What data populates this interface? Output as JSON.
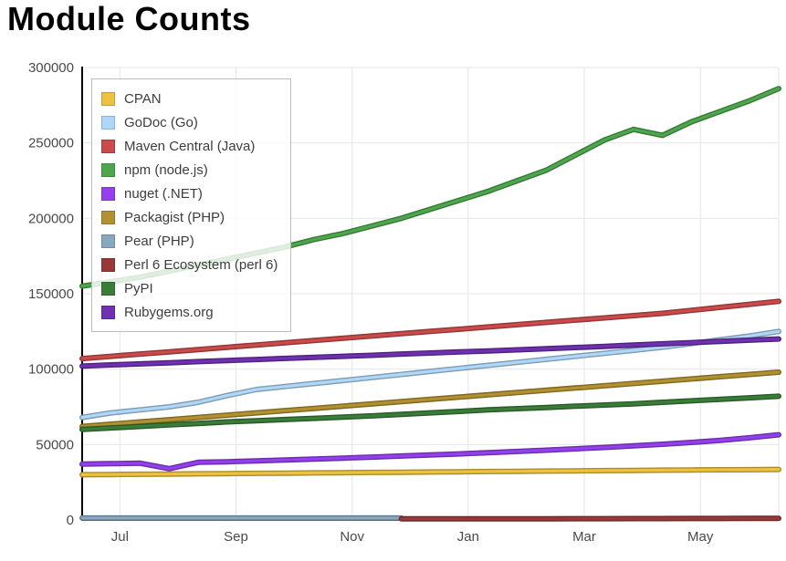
{
  "title": "Module Counts",
  "chart_data": {
    "type": "line",
    "title": "Module Counts",
    "xlabel": "",
    "ylabel": "",
    "xlim": [
      0,
      12
    ],
    "ylim": [
      0,
      300000
    ],
    "grid": true,
    "legend_position": "top-left",
    "x_unit": "months (mid-June through early June)",
    "x": [
      0,
      0.5,
      1,
      1.5,
      2,
      2.5,
      3,
      3.5,
      4,
      4.5,
      5,
      5.5,
      6,
      6.5,
      7,
      7.5,
      8,
      8.5,
      9,
      9.5,
      10,
      10.5,
      11,
      11.5,
      12
    ],
    "x_ticks": [
      {
        "pos": 0.65,
        "label": "Jul"
      },
      {
        "pos": 2.65,
        "label": "Sep"
      },
      {
        "pos": 4.65,
        "label": "Nov"
      },
      {
        "pos": 6.65,
        "label": "Jan"
      },
      {
        "pos": 8.65,
        "label": "Mar"
      },
      {
        "pos": 10.65,
        "label": "May"
      }
    ],
    "y_ticks": [
      0,
      50000,
      100000,
      150000,
      200000,
      250000,
      300000
    ],
    "series": [
      {
        "name": "CPAN",
        "color": "#edc240",
        "values": [
          30000,
          30150,
          30300,
          30450,
          30600,
          30750,
          30900,
          31050,
          31200,
          31350,
          31500,
          31650,
          31800,
          31950,
          32100,
          32250,
          32400,
          32550,
          32700,
          32850,
          33000,
          33150,
          33250,
          33350,
          33500
        ]
      },
      {
        "name": "GoDoc (Go)",
        "color": "#afd8f8",
        "values": [
          68000,
          71000,
          73000,
          75000,
          78000,
          82500,
          86500,
          88500,
          90500,
          92500,
          94500,
          96500,
          98500,
          100500,
          102500,
          104500,
          106500,
          108500,
          110500,
          112500,
          114500,
          117000,
          119500,
          122000,
          125000
        ]
      },
      {
        "name": "Maven Central (Java)",
        "color": "#cb4b4b",
        "values": [
          107000,
          108500,
          110000,
          111500,
          113000,
          114500,
          116000,
          117500,
          119000,
          120500,
          122000,
          123500,
          125000,
          126500,
          128000,
          129500,
          131000,
          132500,
          134000,
          135500,
          137000,
          139000,
          141000,
          143000,
          145000
        ]
      },
      {
        "name": "npm (node.js)",
        "color": "#4da74d",
        "values": [
          155000,
          158000,
          161000,
          165000,
          169000,
          173000,
          177000,
          181000,
          186000,
          190000,
          195000,
          200000,
          206000,
          212000,
          218000,
          225000,
          232000,
          242000,
          252000,
          259000,
          255000,
          264000,
          271000,
          278000,
          286000
        ]
      },
      {
        "name": "nuget (.NET)",
        "color": "#9440ed",
        "values": [
          37000,
          37300,
          37600,
          34000,
          38200,
          38600,
          39200,
          39800,
          40400,
          41000,
          41700,
          42400,
          43100,
          43800,
          44600,
          45400,
          46300,
          47200,
          48100,
          49100,
          50200,
          51400,
          52800,
          54500,
          56500
        ]
      },
      {
        "name": "Packagist (PHP)",
        "color": "#b19130",
        "values": [
          62000,
          63500,
          65000,
          66500,
          68000,
          69500,
          71000,
          72500,
          74000,
          75500,
          77000,
          78500,
          80000,
          81500,
          83000,
          84500,
          86000,
          87500,
          89000,
          90500,
          92000,
          93500,
          95000,
          96500,
          98000
        ]
      },
      {
        "name": "Pear (PHP)",
        "color": "#88a8c1",
        "values": [
          1300,
          1300,
          1300,
          1300,
          1300,
          1300,
          1300,
          1300,
          1300,
          1300,
          1300,
          1300,
          null,
          null,
          null,
          null,
          null,
          null,
          null,
          null,
          null,
          null,
          null,
          null,
          null
        ]
      },
      {
        "name": "Perl 6 Ecosystem (perl 6)",
        "color": "#983838",
        "values": [
          null,
          null,
          null,
          null,
          null,
          null,
          null,
          null,
          null,
          null,
          null,
          700,
          720,
          740,
          760,
          780,
          800,
          830,
          860,
          890,
          920,
          950,
          980,
          1010,
          1050
        ]
      },
      {
        "name": "PyPI",
        "color": "#397d39",
        "values": [
          60000,
          61000,
          62000,
          63000,
          64000,
          65000,
          65800,
          66600,
          67400,
          68200,
          69000,
          70000,
          71000,
          72000,
          73000,
          73800,
          74600,
          75400,
          76200,
          77000,
          78000,
          79000,
          80000,
          81000,
          82000
        ]
      },
      {
        "name": "Rubygems.org",
        "color": "#6f30b1",
        "values": [
          102000,
          102800,
          103500,
          104200,
          105000,
          105700,
          106400,
          107100,
          107800,
          108500,
          109200,
          110000,
          110700,
          111400,
          112100,
          112800,
          113500,
          114300,
          115100,
          116000,
          116800,
          117600,
          118400,
          119200,
          120000
        ]
      }
    ]
  }
}
